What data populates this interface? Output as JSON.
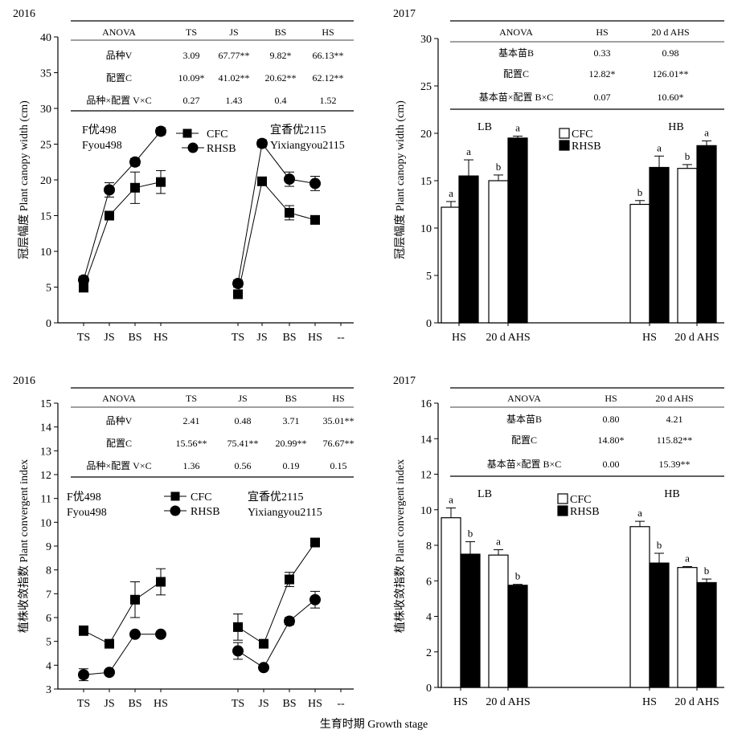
{
  "figure": {
    "xlabel": "生育时期 Growth stage"
  },
  "chart_data": [
    {
      "id": "p1",
      "type": "line",
      "year": "2016",
      "ylabel": "冠层幅度 Plant canopy width (cm)",
      "ylim": [
        0,
        40
      ],
      "yticks": [
        "0",
        "5",
        "10",
        "15",
        "20",
        "25",
        "30",
        "35",
        "40"
      ],
      "x_tick_labels": [
        "TS",
        "JS",
        "BS",
        "HS",
        "TS",
        "JS",
        "BS",
        "HS",
        "--"
      ],
      "legend": [
        {
          "key": "CFC",
          "label": "CFC",
          "marker": "square"
        },
        {
          "key": "RHSB",
          "label": "RHSB",
          "marker": "circle"
        }
      ],
      "groups": [
        {
          "variety_cn": "F优498",
          "variety_en": "Fyou498",
          "series": {
            "CFC": {
              "values": [
                5.0,
                15.0,
                18.9,
                19.7
              ],
              "err": [
                0.7,
                0.6,
                2.2,
                1.6
              ]
            },
            "RHSB": {
              "values": [
                6.0,
                18.6,
                22.5,
                26.8
              ],
              "err": [
                0.5,
                1.0,
                0.5,
                0.5
              ]
            }
          }
        },
        {
          "variety_cn": "宜香优2115",
          "variety_en": "Yixiangyou2115",
          "series": {
            "CFC": {
              "values": [
                4.0,
                19.8,
                15.4,
                14.4
              ],
              "err": [
                0.5,
                0.5,
                1.0,
                0.5
              ]
            },
            "RHSB": {
              "values": [
                5.5,
                25.1,
                20.1,
                19.5
              ],
              "err": [
                0.5,
                0.5,
                1.0,
                1.0
              ]
            }
          }
        }
      ],
      "anova": {
        "headers": [
          "ANOVA",
          "TS",
          "JS",
          "BS",
          "HS"
        ],
        "rows": [
          [
            "品种V",
            "3.09",
            "67.77**",
            "9.82*",
            "66.13**"
          ],
          [
            "配置C",
            "10.09*",
            "41.02**",
            "20.62**",
            "62.12**"
          ],
          [
            "品种×配置 V×C",
            "0.27",
            "1.43",
            "0.4",
            "1.52"
          ]
        ]
      }
    },
    {
      "id": "p2",
      "type": "bar",
      "year": "2017",
      "ylabel": "冠层幅度 Plant canopy width (cm)",
      "ylim": [
        0,
        30
      ],
      "yticks": [
        "0",
        "5",
        "10",
        "15",
        "20",
        "25",
        "30"
      ],
      "x_tick_labels": [
        "HS",
        "20 d AHS",
        "HS",
        "20 d AHS"
      ],
      "legend": [
        {
          "key": "CFC",
          "label": "CFC",
          "fill": "#ffffff"
        },
        {
          "key": "RHSB",
          "label": "RHSB",
          "fill": "#000000"
        }
      ],
      "groups": [
        {
          "label": "LB",
          "CFC": {
            "values": [
              12.2,
              15.0
            ],
            "err": [
              0.6,
              0.6
            ],
            "letters": [
              "a",
              "b"
            ]
          },
          "RHSB": {
            "values": [
              15.5,
              19.5
            ],
            "err": [
              1.7,
              0.2
            ],
            "letters": [
              "a",
              "a"
            ]
          }
        },
        {
          "label": "HB",
          "CFC": {
            "values": [
              12.5,
              16.3
            ],
            "err": [
              0.4,
              0.4
            ],
            "letters": [
              "b",
              "b"
            ]
          },
          "RHSB": {
            "values": [
              16.4,
              18.7
            ],
            "err": [
              1.2,
              0.5
            ],
            "letters": [
              "a",
              "a"
            ]
          }
        }
      ],
      "anova": {
        "headers": [
          "ANOVA",
          "HS",
          "20 d AHS"
        ],
        "rows": [
          [
            "基本苗B",
            "0.33",
            "0.98"
          ],
          [
            "配置C",
            "12.82*",
            "126.01**"
          ],
          [
            "基本苗×配置 B×C",
            "0.07",
            "10.60*"
          ]
        ]
      }
    },
    {
      "id": "p3",
      "type": "line",
      "year": "2016",
      "ylabel": "植株收敛指数 Plant convergent index",
      "ylim": [
        3,
        15
      ],
      "yticks": [
        "3",
        "4",
        "5",
        "6",
        "7",
        "8",
        "9",
        "10",
        "11",
        "12",
        "13",
        "14",
        "15"
      ],
      "x_tick_labels": [
        "TS",
        "JS",
        "BS",
        "HS",
        "TS",
        "JS",
        "BS",
        "HS",
        "--"
      ],
      "legend": [
        {
          "key": "CFC",
          "label": "CFC",
          "marker": "square"
        },
        {
          "key": "RHSB",
          "label": "RHSB",
          "marker": "circle"
        }
      ],
      "groups": [
        {
          "variety_cn": "F优498",
          "variety_en": "Fyou498",
          "series": {
            "CFC": {
              "values": [
                5.45,
                4.9,
                6.75,
                7.5
              ],
              "err": [
                0.2,
                0.1,
                0.75,
                0.55
              ]
            },
            "RHSB": {
              "values": [
                3.6,
                3.7,
                5.3,
                5.3
              ],
              "err": [
                0.25,
                0.1,
                0.1,
                0.1
              ]
            }
          }
        },
        {
          "variety_cn": "宜香优2115",
          "variety_en": "Yixiangyou2115",
          "series": {
            "CFC": {
              "values": [
                5.6,
                4.9,
                7.6,
                9.15
              ],
              "err": [
                0.55,
                0.1,
                0.3,
                0.1
              ]
            },
            "RHSB": {
              "values": [
                4.6,
                3.9,
                5.85,
                6.75
              ],
              "err": [
                0.35,
                0.1,
                0.15,
                0.35
              ]
            }
          }
        }
      ],
      "anova": {
        "headers": [
          "ANOVA",
          "TS",
          "JS",
          "BS",
          "HS"
        ],
        "rows": [
          [
            "品种V",
            "2.41",
            "0.48",
            "3.71",
            "35.01**"
          ],
          [
            "配置C",
            "15.56**",
            "75.41**",
            "20.99**",
            "76.67**"
          ],
          [
            "品种×配置 V×C",
            "1.36",
            "0.56",
            "0.19",
            "0.15"
          ]
        ]
      }
    },
    {
      "id": "p4",
      "type": "bar",
      "year": "2017",
      "ylabel": "植株收敛指数 Plant convergent index",
      "ylim": [
        0,
        16
      ],
      "yticks": [
        "0",
        "2",
        "4",
        "6",
        "8",
        "10",
        "12",
        "14",
        "16"
      ],
      "x_tick_labels": [
        "HS",
        "20 d AHS",
        "HS",
        "20 d AHS"
      ],
      "legend": [
        {
          "key": "CFC",
          "label": "CFC",
          "fill": "#ffffff"
        },
        {
          "key": "RHSB",
          "label": "RHSB",
          "fill": "#000000"
        }
      ],
      "groups": [
        {
          "label": "LB",
          "CFC": {
            "values": [
              9.55,
              7.45
            ],
            "err": [
              0.55,
              0.3
            ],
            "letters": [
              "a",
              "a"
            ]
          },
          "RHSB": {
            "values": [
              7.5,
              5.75
            ],
            "err": [
              0.7,
              0.05
            ],
            "letters": [
              "b",
              "b"
            ]
          }
        },
        {
          "label": "HB",
          "CFC": {
            "values": [
              9.05,
              6.75
            ],
            "err": [
              0.3,
              0.05
            ],
            "letters": [
              "a",
              "a"
            ]
          },
          "RHSB": {
            "values": [
              7.0,
              5.9
            ],
            "err": [
              0.55,
              0.2
            ],
            "letters": [
              "b",
              "b"
            ]
          }
        }
      ],
      "anova": {
        "headers": [
          "ANOVA",
          "HS",
          "20 d AHS"
        ],
        "rows": [
          [
            "基本苗B",
            "0.80",
            "4.21"
          ],
          [
            "配置C",
            "14.80*",
            "115.82**"
          ],
          [
            "基本苗×配置 B×C",
            "0.00",
            "15.39**"
          ]
        ]
      }
    }
  ]
}
